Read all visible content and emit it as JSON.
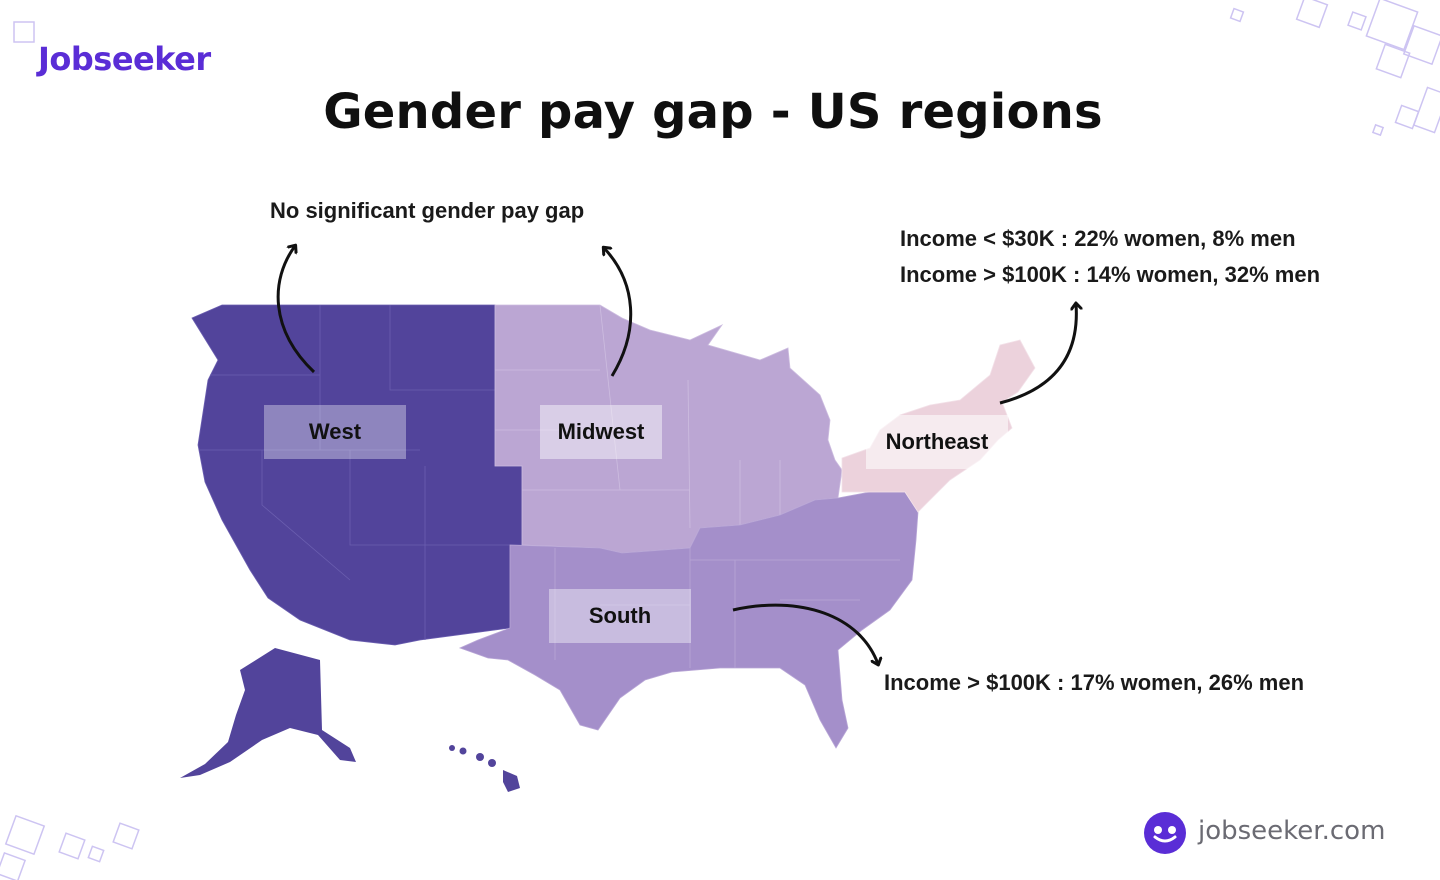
{
  "brand": {
    "logo_text": "Jobseeker",
    "footer_url": "jobseeker.com"
  },
  "title": "Gender pay gap - US regions",
  "regions": {
    "west": {
      "label": "West",
      "color": "#52449b"
    },
    "midwest": {
      "label": "Midwest",
      "color": "#bba6d3"
    },
    "south": {
      "label": "South",
      "color": "#a48fca"
    },
    "northeast": {
      "label": "Northeast",
      "color": "#ecd2dc"
    }
  },
  "annotations": {
    "west_midwest": "No significant gender pay gap",
    "northeast_line1": "Income < $30K : 22% women, 8% men",
    "northeast_line2": "Income > $100K : 14% women, 32% men",
    "south": "Income > $100K : 17% women, 26% men"
  },
  "colors": {
    "brand": "#5a2dd6",
    "decor": "#cdc4f2"
  },
  "icons": {
    "footer": "smiley-face-icon",
    "arrow": "curved-arrow-icon"
  }
}
